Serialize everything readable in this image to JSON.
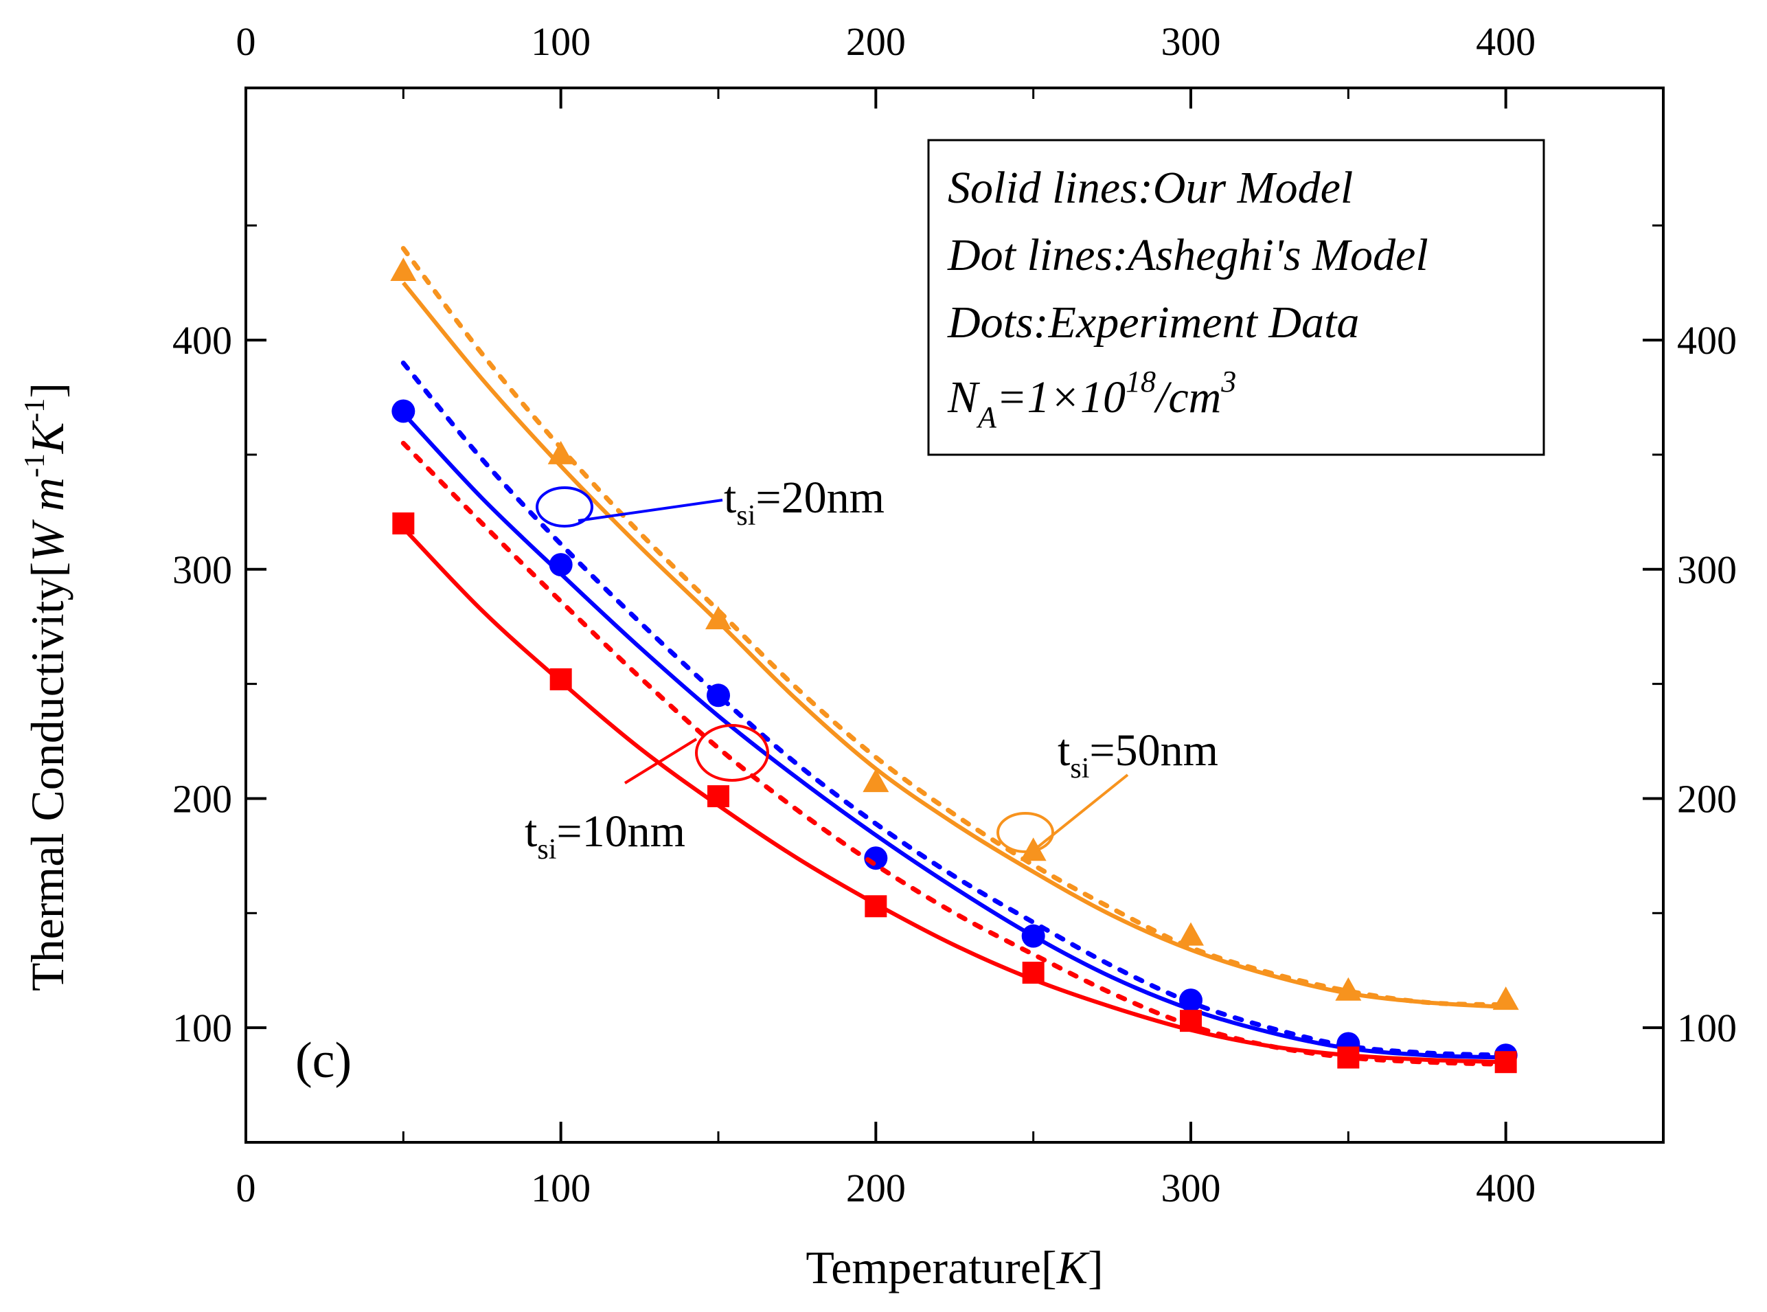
{
  "chart_data": {
    "type": "line",
    "title": "",
    "panel_label": "(c)",
    "xlabel": {
      "main": "Temperature[",
      "unit": "K",
      "close": "]"
    },
    "ylabel": {
      "main": "Thermal Conductivity[",
      "u1": "W m",
      "e1": "-1",
      "u2": "K",
      "e2": "-1",
      "close": "]"
    },
    "xlim": [
      0,
      450
    ],
    "ylim": [
      50,
      510
    ],
    "x_ticks": [
      0,
      100,
      200,
      300,
      400
    ],
    "y_ticks": [
      100,
      200,
      300,
      400
    ],
    "legend": {
      "location": "top-right",
      "lines": [
        "Solid lines:Our Model",
        "Dot lines:Asheghi's Model",
        "Dots:Experiment Data"
      ],
      "na": {
        "base": "N",
        "sub": "A",
        "eq": "=1×10",
        "sup": "18",
        "unit": "/cm",
        "sup2": "3"
      }
    },
    "series": [
      {
        "name": "t_si=50nm",
        "color": "#f7931e",
        "marker": "triangle",
        "label": {
          "t": "t",
          "sub": "si",
          "rest": "=50nm"
        },
        "experiment": {
          "x": [
            50,
            100,
            150,
            200,
            250,
            300,
            350,
            400
          ],
          "y": [
            430,
            350,
            278,
            207,
            177,
            140,
            116,
            112
          ]
        },
        "model": {
          "x": [
            50,
            75,
            100,
            125,
            150,
            175,
            200,
            225,
            250,
            275,
            300,
            325,
            350,
            375,
            400
          ],
          "y": [
            425,
            383,
            345,
            310,
            277,
            243,
            213,
            189,
            168,
            149,
            134,
            123,
            115,
            111,
            109
          ]
        },
        "asheghi": {
          "x": [
            50,
            75,
            100,
            125,
            150,
            175,
            200,
            225,
            250,
            275,
            300,
            325,
            350,
            375,
            400
          ],
          "y": [
            440,
            394,
            353,
            316,
            282,
            248,
            218,
            193,
            171,
            152,
            135,
            124,
            116,
            111,
            110
          ]
        }
      },
      {
        "name": "t_si=20nm",
        "color": "#0000ff",
        "marker": "circle",
        "label": {
          "t": "t",
          "sub": "si",
          "rest": "=20nm"
        },
        "experiment": {
          "x": [
            50,
            100,
            150,
            200,
            250,
            300,
            350,
            400
          ],
          "y": [
            369,
            302,
            245,
            174,
            140,
            112,
            93,
            88
          ]
        },
        "model": {
          "x": [
            50,
            75,
            100,
            125,
            150,
            175,
            200,
            225,
            250,
            275,
            300,
            325,
            350,
            375,
            400
          ],
          "y": [
            368,
            331,
            298,
            266,
            236,
            209,
            184,
            161,
            140,
            122,
            108,
            98,
            91,
            88,
            87
          ]
        },
        "asheghi": {
          "x": [
            50,
            75,
            100,
            125,
            150,
            175,
            200,
            225,
            250,
            275,
            300,
            325,
            350,
            375,
            400
          ],
          "y": [
            390,
            348,
            311,
            277,
            245,
            215,
            189,
            166,
            146,
            127,
            111,
            100,
            92,
            89,
            88
          ]
        }
      },
      {
        "name": "t_si=10nm",
        "color": "#ff0000",
        "marker": "square",
        "label": {
          "t": "t",
          "sub": "si",
          "rest": "=10nm"
        },
        "experiment": {
          "x": [
            50,
            100,
            150,
            200,
            250,
            300,
            350,
            400
          ],
          "y": [
            320,
            252,
            201,
            153,
            124,
            103,
            87,
            85
          ]
        },
        "model": {
          "x": [
            50,
            75,
            100,
            125,
            150,
            175,
            200,
            225,
            250,
            275,
            300,
            325,
            350,
            375,
            400
          ],
          "y": [
            318,
            282,
            251,
            222,
            197,
            174,
            154,
            136,
            121,
            109,
            99,
            92,
            88,
            86,
            85
          ]
        },
        "asheghi": {
          "x": [
            50,
            75,
            100,
            125,
            150,
            175,
            200,
            225,
            250,
            275,
            300,
            325,
            350,
            375,
            400
          ],
          "y": [
            355,
            320,
            286,
            253,
            222,
            195,
            171,
            150,
            132,
            115,
            101,
            92,
            87,
            85,
            84
          ]
        }
      }
    ]
  }
}
